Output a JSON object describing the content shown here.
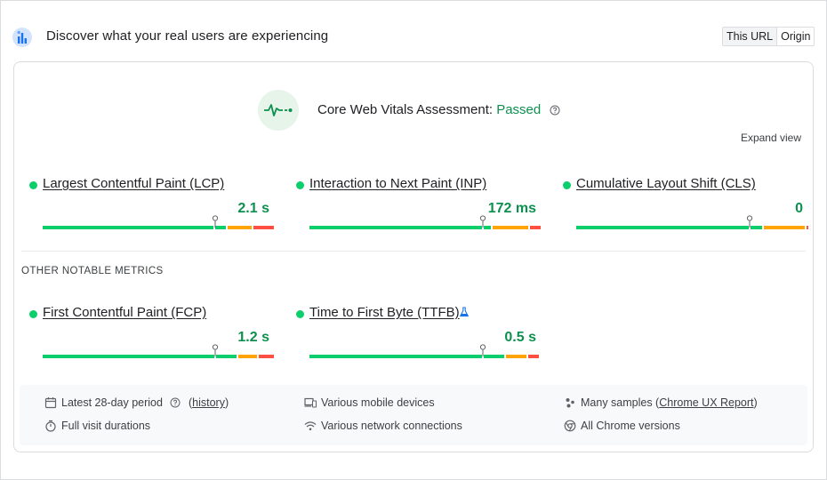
{
  "header": {
    "title": "Discover what your real users are experiencing",
    "toggle": {
      "this_url": "This URL",
      "origin": "Origin",
      "selected": "This URL"
    }
  },
  "assessment": {
    "label": "Core Web Vitals Assessment:",
    "status": "Passed",
    "status_color": "#0d904f"
  },
  "expand_view": "Expand view",
  "core_metrics": [
    {
      "name": "Largest Contentful Paint (LCP)",
      "value": "2.1 s"
    },
    {
      "name": "Interaction to Next Paint (INP)",
      "value": "172 ms"
    },
    {
      "name": "Cumulative Layout Shift (CLS)",
      "value": "0"
    }
  ],
  "other_label": "OTHER NOTABLE METRICS",
  "other_metrics": [
    {
      "name": "First Contentful Paint (FCP)",
      "value": "1.2 s"
    },
    {
      "name": "Time to First Byte (TTFB)",
      "value": "0.5 s",
      "experimental_icon": "flask-icon"
    }
  ],
  "colors": {
    "good": "#0cce6b",
    "needs_improvement": "#ffa400",
    "poor": "#ff4e42"
  },
  "footer": {
    "period": "Latest 28-day period",
    "history_open": "(",
    "history": "history",
    "history_close": ")",
    "durations": "Full visit durations",
    "devices": "Various mobile devices",
    "network": "Various network connections",
    "samples_prefix": "Many samples (",
    "samples_link": "Chrome UX Report",
    "samples_suffix": ")",
    "versions": "All Chrome versions"
  }
}
